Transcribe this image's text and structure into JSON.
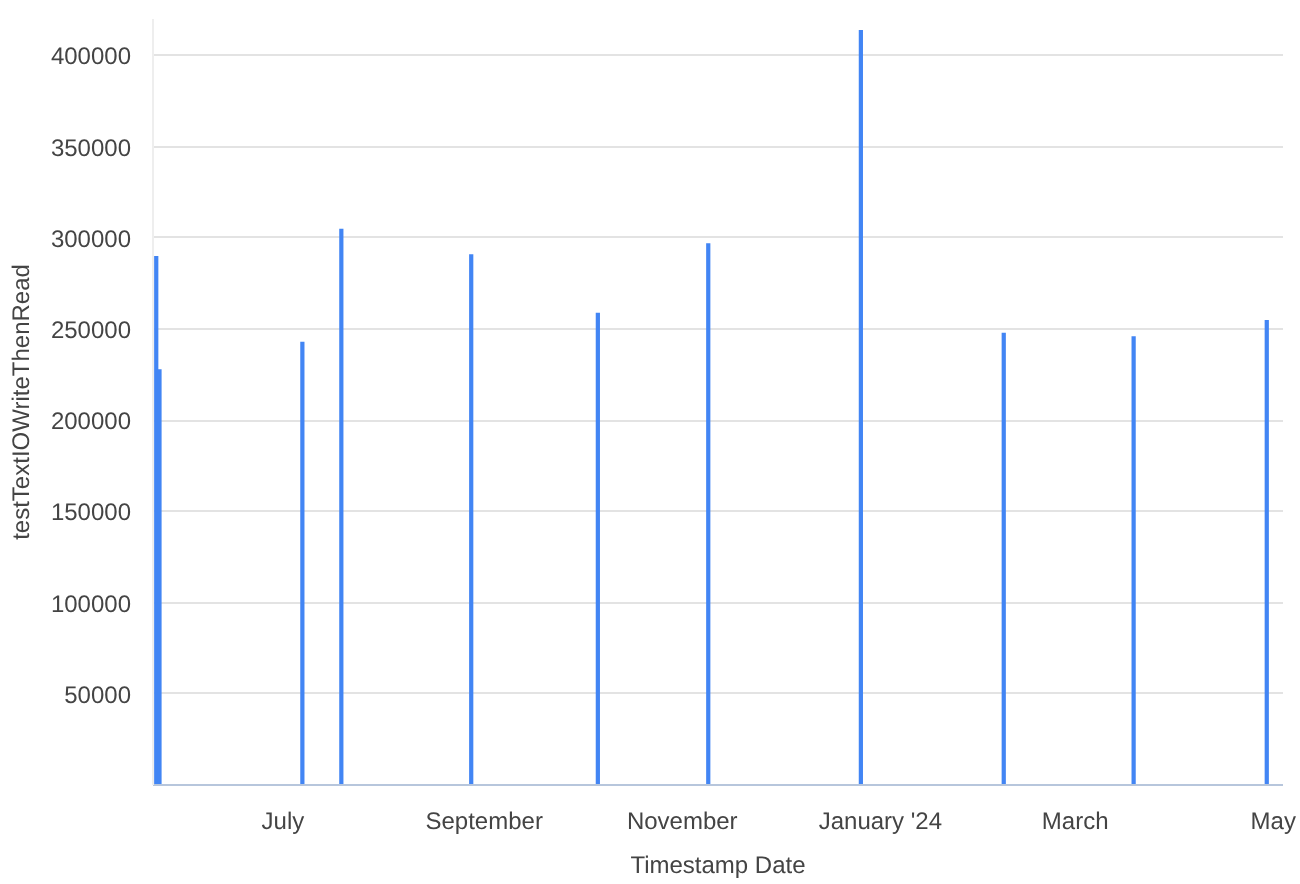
{
  "chart_data": {
    "type": "bar",
    "xlabel": "Timestamp Date",
    "ylabel": "testTextIOWriteThenRead",
    "x": [
      "2023-05-23",
      "2023-05-24",
      "2023-07-07",
      "2023-07-19",
      "2023-08-28",
      "2023-10-06",
      "2023-11-09",
      "2023-12-26",
      "2024-02-08",
      "2024-03-19",
      "2024-04-29"
    ],
    "series": [
      {
        "color": "#4285f4",
        "values": [
          290000,
          228000,
          243000,
          305000,
          291000,
          259000,
          297000,
          414000,
          248000,
          246000,
          255000
        ]
      }
    ],
    "xlim": [
      "2023-05-22",
      "2024-05-04"
    ],
    "xticks": [
      {
        "value": "2023-07-01",
        "label": "July"
      },
      {
        "value": "2023-09-01",
        "label": "September"
      },
      {
        "value": "2023-11-01",
        "label": "November"
      },
      {
        "value": "2024-01-01",
        "label": "January '24"
      },
      {
        "value": "2024-03-01",
        "label": "March"
      },
      {
        "value": "2024-05-01",
        "label": "May"
      }
    ],
    "ylim": [
      0,
      420000
    ],
    "yticks": [
      50000,
      100000,
      150000,
      200000,
      250000,
      300000,
      350000,
      400000
    ],
    "grid": "y"
  }
}
